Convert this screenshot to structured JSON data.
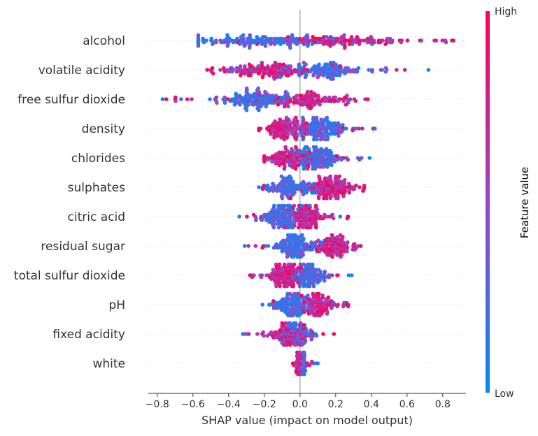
{
  "chart_data": {
    "type": "scatter",
    "subtype": "shap-beeswarm",
    "xlabel": "SHAP value (impact on model output)",
    "xlim": [
      -0.85,
      0.93
    ],
    "xticks": [
      -0.8,
      -0.6,
      -0.4,
      -0.2,
      0.0,
      0.2,
      0.4,
      0.6,
      0.8
    ],
    "xtick_labels": [
      "−0.8",
      "−0.6",
      "−0.4",
      "−0.2",
      "0.0",
      "0.2",
      "0.4",
      "0.6",
      "0.8"
    ],
    "colorbar": {
      "label": "Feature value",
      "high_label": "High",
      "low_label": "Low",
      "low_color": "#008bfb",
      "high_color": "#ff0052"
    },
    "colors": {
      "low": "#008bfb",
      "mid": "#9a46c8",
      "high": "#ff0052",
      "zero_line": "#999999",
      "text": "#333333"
    },
    "features": [
      {
        "name": "alcohol",
        "low_side": "left",
        "range": [
          -0.57,
          0.86
        ],
        "center_low": -0.24,
        "center_high": 0.25,
        "spread": 0.3
      },
      {
        "name": "volatile acidity",
        "low_side": "right",
        "range": [
          -0.52,
          0.72
        ],
        "center_low": 0.12,
        "center_high": -0.18,
        "spread": 0.22
      },
      {
        "name": "free sulfur dioxide",
        "low_side": "left",
        "range": [
          -0.77,
          0.38
        ],
        "center_low": -0.25,
        "center_high": 0.06,
        "spread": 0.16
      },
      {
        "name": "density",
        "low_side": "right",
        "range": [
          -0.23,
          0.42
        ],
        "center_low": 0.12,
        "center_high": -0.08,
        "spread": 0.1
      },
      {
        "name": "chlorides",
        "low_side": "right",
        "range": [
          -0.2,
          0.39
        ],
        "center_low": 0.1,
        "center_high": -0.06,
        "spread": 0.09
      },
      {
        "name": "sulphates",
        "low_side": "left",
        "range": [
          -0.23,
          0.36
        ],
        "center_low": -0.05,
        "center_high": 0.18,
        "spread": 0.1
      },
      {
        "name": "citric acid",
        "low_side": "left",
        "range": [
          -0.34,
          0.27
        ],
        "center_low": -0.1,
        "center_high": 0.05,
        "spread": 0.08
      },
      {
        "name": "residual sugar",
        "low_side": "left",
        "range": [
          -0.31,
          0.34
        ],
        "center_low": -0.03,
        "center_high": 0.2,
        "spread": 0.08
      },
      {
        "name": "total sulfur dioxide",
        "low_side": "right",
        "range": [
          -0.28,
          0.29
        ],
        "center_low": 0.06,
        "center_high": -0.08,
        "spread": 0.07
      },
      {
        "name": "pH",
        "low_side": "left",
        "range": [
          -0.21,
          0.27
        ],
        "center_low": -0.04,
        "center_high": 0.1,
        "spread": 0.07
      },
      {
        "name": "fixed acidity",
        "low_side": "left",
        "range": [
          -0.32,
          0.19
        ],
        "center_low": -0.02,
        "center_high": -0.05,
        "spread": 0.06
      },
      {
        "name": "white",
        "low_side": "right",
        "range": [
          -0.04,
          0.1
        ],
        "center_low": 0.02,
        "center_high": -0.01,
        "spread": 0.012
      }
    ]
  }
}
